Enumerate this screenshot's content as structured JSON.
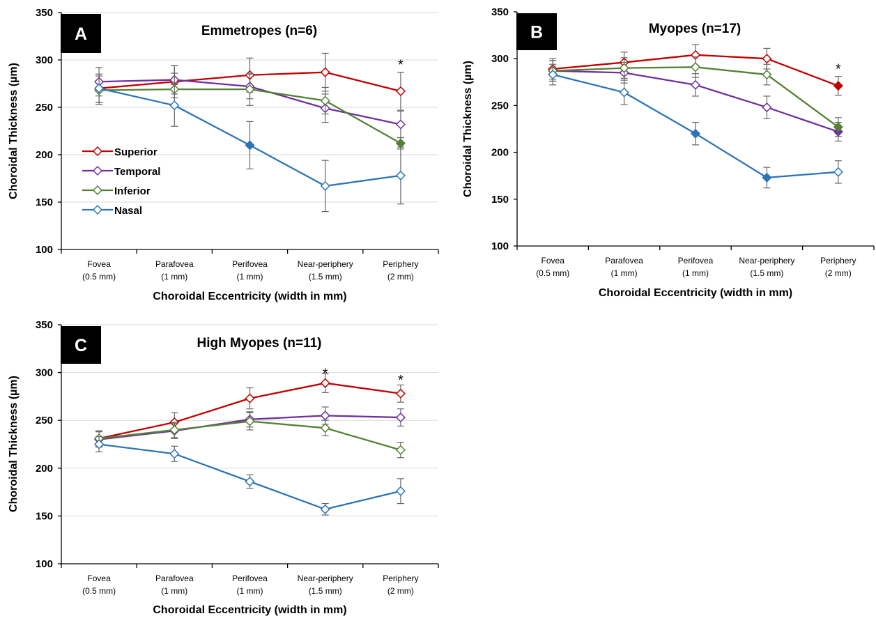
{
  "colors": {
    "Superior": "#c00000",
    "Temporal": "#7030a0",
    "Inferior": "#548235",
    "Nasal": "#2e75b6"
  },
  "chart_data": [
    {
      "panel": "A",
      "type": "line",
      "title": "Emmetropes (n=6)",
      "xlabel": "Choroidal Eccentricity (width in mm)",
      "ylabel": "Choroidal Thickness (µm)",
      "ylim": [
        100,
        350
      ],
      "yticks": [
        100,
        150,
        200,
        250,
        300,
        350
      ],
      "grid": true,
      "legend": "left",
      "categories": [
        [
          "Fovea",
          "(0.5 mm)"
        ],
        [
          "Parafovea",
          "(1 mm)"
        ],
        [
          "Perifovea",
          "(1 mm)"
        ],
        [
          "Near-periphery",
          "(1.5 mm)"
        ],
        [
          "Periphery",
          "(2 mm)"
        ]
      ],
      "series": [
        {
          "name": "Superior",
          "values": [
            270,
            277,
            284,
            287,
            267
          ],
          "errors": [
            15,
            17,
            18,
            20,
            20
          ],
          "filled": [
            false,
            false,
            false,
            false,
            false
          ]
        },
        {
          "name": "Temporal",
          "values": [
            277,
            279,
            272,
            249,
            232
          ],
          "errors": [
            15,
            15,
            13,
            15,
            14
          ],
          "filled": [
            false,
            false,
            false,
            false,
            false
          ]
        },
        {
          "name": "Inferior",
          "values": [
            268,
            269,
            269,
            257,
            212
          ],
          "errors": [
            15,
            17,
            17,
            14,
            6
          ],
          "filled": [
            false,
            false,
            false,
            false,
            true
          ]
        },
        {
          "name": "Nasal",
          "values": [
            270,
            252,
            210,
            167,
            178
          ],
          "errors": [
            15,
            22,
            25,
            27,
            30
          ],
          "filled": [
            false,
            false,
            true,
            false,
            false
          ]
        }
      ],
      "annotations": [
        {
          "category": 4,
          "value": 296,
          "text": "*"
        }
      ]
    },
    {
      "panel": "B",
      "type": "line",
      "title": "Myopes (n=17)",
      "xlabel": "Choroidal Eccentricity (width in mm)",
      "ylabel": "Choroidal Thickness (µm)",
      "ylim": [
        100,
        350
      ],
      "yticks": [
        100,
        150,
        200,
        250,
        300,
        350
      ],
      "grid": false,
      "categories": [
        [
          "Fovea",
          "(0.5 mm)"
        ],
        [
          "Parafovea",
          "(1 mm)"
        ],
        [
          "Perifovea",
          "(1 mm)"
        ],
        [
          "Near-periphery",
          "(1.5 mm)"
        ],
        [
          "Periphery",
          "(2 mm)"
        ]
      ],
      "series": [
        {
          "name": "Superior",
          "values": [
            289,
            296,
            304,
            300,
            271
          ],
          "errors": [
            11,
            11,
            11,
            11,
            10
          ],
          "filled": [
            false,
            false,
            false,
            false,
            true
          ]
        },
        {
          "name": "Temporal",
          "values": [
            287,
            285,
            272,
            248,
            222
          ],
          "errors": [
            11,
            11,
            12,
            12,
            10
          ],
          "filled": [
            false,
            false,
            false,
            false,
            true
          ]
        },
        {
          "name": "Inferior",
          "values": [
            287,
            290,
            291,
            283,
            227
          ],
          "errors": [
            11,
            11,
            11,
            11,
            10
          ],
          "filled": [
            false,
            false,
            false,
            false,
            true
          ]
        },
        {
          "name": "Nasal",
          "values": [
            283,
            264,
            220,
            173,
            179
          ],
          "errors": [
            11,
            13,
            12,
            11,
            12
          ],
          "filled": [
            false,
            false,
            true,
            true,
            false
          ]
        }
      ],
      "annotations": [
        {
          "category": 4,
          "value": 290,
          "text": "*"
        }
      ]
    },
    {
      "panel": "C",
      "type": "line",
      "title": "High Myopes (n=11)",
      "xlabel": "Choroidal Eccentricity (width in mm)",
      "ylabel": "Choroidal Thickness (µm)",
      "ylim": [
        100,
        350
      ],
      "yticks": [
        100,
        150,
        200,
        250,
        300,
        350
      ],
      "grid": true,
      "categories": [
        [
          "Fovea",
          "(0.5 mm)"
        ],
        [
          "Parafovea",
          "(1 mm)"
        ],
        [
          "Perifovea",
          "(1 mm)"
        ],
        [
          "Near-periphery",
          "(1.5 mm)"
        ],
        [
          "Periphery",
          "(2 mm)"
        ]
      ],
      "series": [
        {
          "name": "Superior",
          "values": [
            231,
            248,
            273,
            289,
            278
          ],
          "errors": [
            8,
            10,
            11,
            10,
            9
          ],
          "filled": [
            false,
            false,
            false,
            false,
            false
          ]
        },
        {
          "name": "Temporal",
          "values": [
            230,
            239,
            251,
            255,
            253
          ],
          "errors": [
            8,
            8,
            8,
            9,
            9
          ],
          "filled": [
            false,
            false,
            false,
            false,
            false
          ]
        },
        {
          "name": "Inferior",
          "values": [
            231,
            240,
            249,
            242,
            219
          ],
          "errors": [
            8,
            8,
            9,
            8,
            8
          ],
          "filled": [
            false,
            false,
            false,
            false,
            false
          ]
        },
        {
          "name": "Nasal",
          "values": [
            225,
            215,
            186,
            157,
            176
          ],
          "errors": [
            8,
            8,
            7,
            6,
            13
          ],
          "filled": [
            false,
            false,
            false,
            false,
            false
          ]
        }
      ],
      "annotations": [
        {
          "category": 3,
          "value": 300,
          "text": "*"
        },
        {
          "category": 4,
          "value": 293,
          "text": "*"
        }
      ]
    }
  ]
}
